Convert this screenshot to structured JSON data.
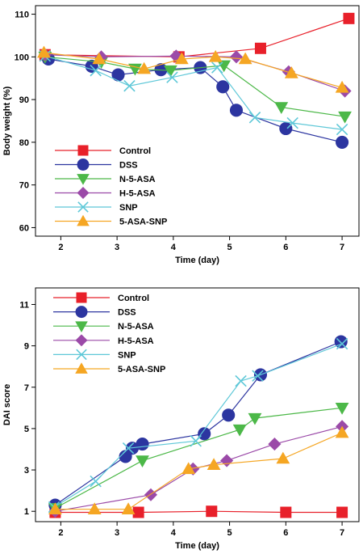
{
  "chart_data": [
    {
      "type": "line",
      "xlabel": "Time (day)",
      "ylabel": "Body weight (%)",
      "xlim": [
        1.55,
        7.3
      ],
      "ylim": [
        58,
        112
      ],
      "xticks": [
        2,
        3,
        4,
        5,
        6,
        7
      ],
      "yticks": [
        60,
        70,
        80,
        90,
        100,
        110
      ],
      "grid": false,
      "legend_position": "bottom-left",
      "series": [
        {
          "name": "Control",
          "color": "#e8202a",
          "marker": "square",
          "x": [
            1.72,
            4.1,
            5.55,
            7.12
          ],
          "y": [
            100.5,
            100,
            102,
            109
          ]
        },
        {
          "name": "DSS",
          "color": "#2c35a0",
          "marker": "circle",
          "x": [
            1.78,
            2.55,
            3.02,
            3.78,
            4.48,
            4.88,
            5.12,
            6.0,
            7.0
          ],
          "y": [
            99.5,
            97.8,
            95.8,
            97,
            97.5,
            93,
            87.5,
            83.2,
            80
          ]
        },
        {
          "name": "N-5-ASA",
          "color": "#4cb848",
          "marker": "triangle-down",
          "x": [
            1.72,
            2.72,
            3.32,
            3.95,
            4.9,
            5.92,
            7.05
          ],
          "y": [
            100,
            98.8,
            97.2,
            96.8,
            98,
            88.2,
            86
          ]
        },
        {
          "name": "H-5-ASA",
          "color": "#9b4aa8",
          "marker": "diamond",
          "x": [
            1.72,
            2.72,
            4.05,
            5.12,
            6.05,
            7.05
          ],
          "y": [
            100.5,
            100,
            100.2,
            100,
            96.5,
            92
          ]
        },
        {
          "name": "SNP",
          "color": "#5fc8d8",
          "marker": "x",
          "x": [
            1.72,
            2.62,
            3.22,
            3.98,
            4.78,
            5.45,
            6.12,
            7.0
          ],
          "y": [
            100.2,
            96.8,
            93.2,
            95.2,
            97.5,
            85.8,
            84.5,
            83
          ]
        },
        {
          "name": "5-ASA-SNP",
          "color": "#f5a623",
          "marker": "triangle-up",
          "x": [
            1.7,
            2.68,
            3.48,
            4.15,
            4.75,
            5.28,
            6.1,
            7.0
          ],
          "y": [
            101,
            99.5,
            97.2,
            99.5,
            100,
            99.5,
            96.2,
            92.8
          ]
        }
      ]
    },
    {
      "type": "line",
      "xlabel": "Time (day)",
      "ylabel": "DAI score",
      "xlim": [
        1.55,
        7.3
      ],
      "ylim": [
        0.5,
        11.8
      ],
      "xticks": [
        2,
        3,
        4,
        5,
        6,
        7
      ],
      "yticks": [
        1,
        3,
        5,
        7,
        9,
        11
      ],
      "grid": false,
      "legend_position": "top-left",
      "series": [
        {
          "name": "Control",
          "color": "#e8202a",
          "marker": "square",
          "x": [
            1.9,
            3.38,
            4.68,
            6.0,
            7.0
          ],
          "y": [
            0.95,
            0.95,
            1.0,
            0.95,
            0.95
          ]
        },
        {
          "name": "DSS",
          "color": "#2c35a0",
          "marker": "circle",
          "x": [
            1.9,
            3.15,
            3.27,
            3.45,
            4.55,
            4.98,
            5.55,
            6.98
          ],
          "y": [
            1.3,
            3.65,
            4.05,
            4.25,
            4.75,
            5.65,
            7.6,
            9.2
          ]
        },
        {
          "name": "N-5-ASA",
          "color": "#4cb848",
          "marker": "triangle-down",
          "x": [
            1.9,
            3.45,
            5.18,
            5.45,
            7.0
          ],
          "y": [
            1.15,
            3.45,
            4.95,
            5.5,
            6.0
          ]
        },
        {
          "name": "H-5-ASA",
          "color": "#9b4aa8",
          "marker": "diamond",
          "x": [
            1.9,
            3.6,
            4.35,
            4.95,
            5.8,
            7.0
          ],
          "y": [
            1.0,
            1.8,
            3.05,
            3.45,
            4.25,
            5.1
          ]
        },
        {
          "name": "SNP",
          "color": "#5fc8d8",
          "marker": "x",
          "x": [
            1.88,
            2.62,
            3.2,
            4.4,
            5.2,
            5.5,
            7.0
          ],
          "y": [
            1.2,
            2.45,
            4.05,
            4.4,
            7.3,
            7.55,
            9.1
          ]
        },
        {
          "name": "5-ASA-SNP",
          "color": "#f5a623",
          "marker": "triangle-up",
          "x": [
            1.9,
            2.6,
            3.2,
            4.27,
            4.72,
            5.95,
            7.0
          ],
          "y": [
            1.1,
            1.1,
            1.1,
            3.05,
            3.25,
            3.55,
            4.8
          ]
        }
      ]
    }
  ]
}
